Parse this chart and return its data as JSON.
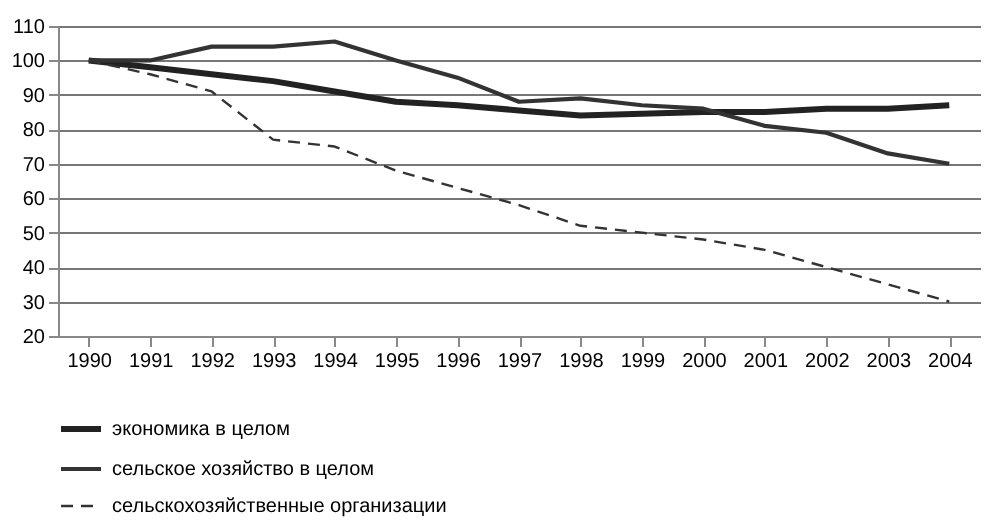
{
  "chart_data": {
    "type": "line",
    "categories": [
      "1990",
      "1991",
      "1992",
      "1993",
      "1994",
      "1995",
      "1996",
      "1997",
      "1998",
      "1999",
      "2000",
      "2001",
      "2002",
      "2003",
      "2004"
    ],
    "series": [
      {
        "name": "экономика в целом",
        "color": "#222222",
        "line_style": "solid",
        "values": [
          100,
          98,
          96,
          94,
          91,
          88,
          87,
          85.5,
          84,
          84.5,
          85,
          85,
          86,
          86,
          87
        ]
      },
      {
        "name": "сельское хозяйство в целом",
        "color": "#333333",
        "line_style": "solid",
        "values": [
          100,
          100,
          104,
          104,
          105.5,
          100,
          95,
          88,
          89,
          87,
          86,
          81,
          79,
          73,
          70
        ]
      },
      {
        "name": "сельскохозяйственные организации",
        "color": "#333333",
        "line_style": "dashed",
        "values": [
          100,
          96,
          91,
          77,
          75,
          68,
          63,
          58,
          52,
          50,
          48,
          45,
          40,
          35,
          30
        ]
      }
    ],
    "ylim": [
      20,
      110
    ],
    "yticks": [
      20,
      30,
      40,
      50,
      60,
      70,
      80,
      90,
      100,
      110
    ],
    "grid": "y",
    "legend": "bottom",
    "marker": "none"
  }
}
